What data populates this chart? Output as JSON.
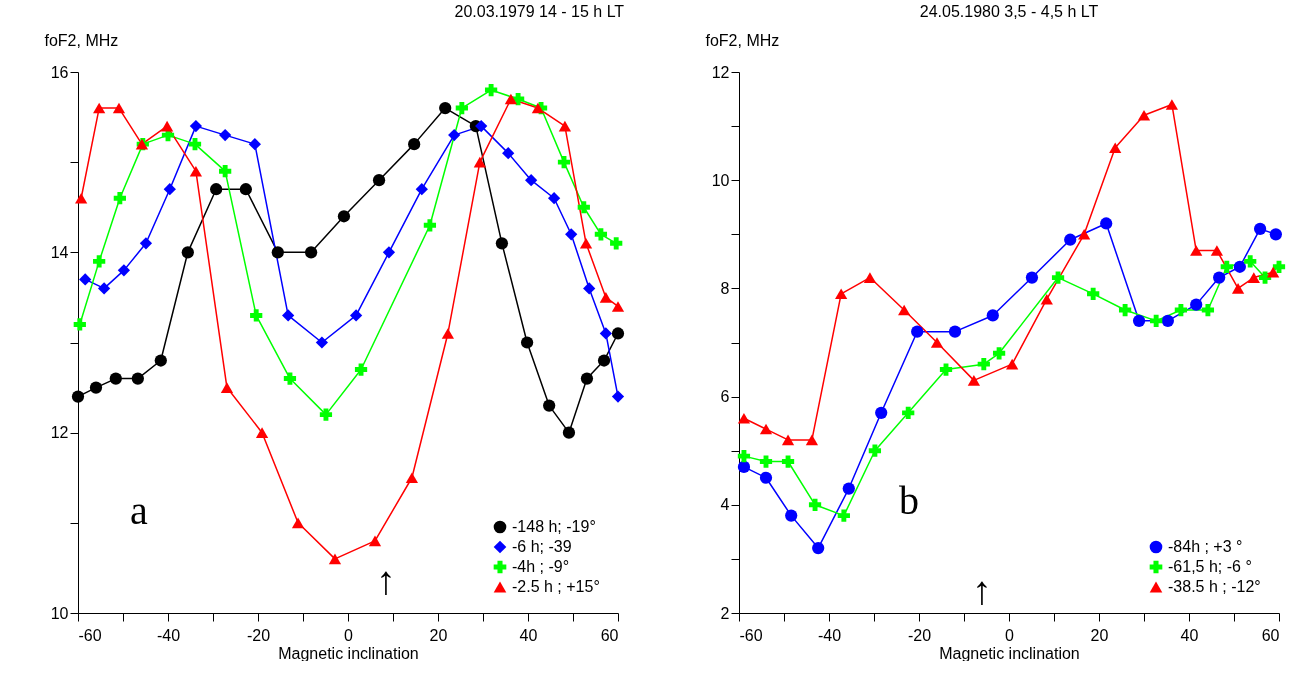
{
  "chart_data": [
    {
      "type": "line",
      "title": "20.03.1979    14 - 15 h LT",
      "xlabel": "Magnetic inclination",
      "ylabel": "foF2, MHz",
      "legend": "bottom right",
      "grid": false,
      "xlim": [
        -60,
        60
      ],
      "xticks": [
        -60,
        {
          "value": -50,
          "label": null
        },
        -40,
        {
          "value": -30,
          "label": null
        },
        -20,
        {
          "value": -10,
          "label": null
        },
        0,
        {
          "value": 10,
          "label": null
        },
        20,
        {
          "value": 30,
          "label": null
        },
        40,
        {
          "value": 50,
          "label": null
        },
        60
      ],
      "ylim": [
        10,
        16
      ],
      "yticks": [
        10,
        {
          "value": 11,
          "label": null
        },
        12,
        {
          "value": 13,
          "label": null
        },
        14,
        {
          "value": 15,
          "label": null
        },
        16
      ],
      "annotations": [
        "a",
        "↑"
      ],
      "series": [
        {
          "name": "-148 h; -19°",
          "color": "#000000",
          "marker": "circle",
          "x": [
            -60,
            -56,
            -51.6,
            -46.7,
            -41.6,
            -35.6,
            -29.3,
            -22.7,
            -15.6,
            -8.2,
            -0.9,
            6.9,
            14.7,
            21.6,
            28.4,
            34.2,
            39.8,
            44.7,
            49.1,
            53.1,
            56.9,
            60
          ],
          "values": [
            12.4,
            12.5,
            12.6,
            12.6,
            12.8,
            14.0,
            14.7,
            14.7,
            14.0,
            14.0,
            14.4,
            14.8,
            15.2,
            15.6,
            15.4,
            14.1,
            13.0,
            12.3,
            12.0,
            12.6,
            12.8,
            13.1
          ]
        },
        {
          "name": "-6 h; -39",
          "color": "#0000ff",
          "marker": "diamond",
          "x": [
            -58.4,
            -54.2,
            -49.8,
            -44.9,
            -39.6,
            -33.8,
            -27.3,
            -20.7,
            -13.3,
            -5.8,
            1.8,
            9.1,
            16.4,
            23.6,
            29.6,
            35.6,
            40.7,
            45.8,
            49.6,
            53.6,
            57.3,
            60
          ],
          "values": [
            13.7,
            13.6,
            13.8,
            14.1,
            14.7,
            15.4,
            15.3,
            15.2,
            13.3,
            13.0,
            13.3,
            14.0,
            14.7,
            15.3,
            15.4,
            15.1,
            14.8,
            14.6,
            14.2,
            13.6,
            13.1,
            12.4
          ]
        },
        {
          "name": "-4h ; -9°",
          "color": "#00ff00",
          "marker": "cross",
          "x": [
            -59.6,
            -55.3,
            -50.7,
            -45.6,
            -40,
            -34,
            -27.3,
            -20.4,
            -12.9,
            -4.9,
            2.9,
            18.2,
            25.3,
            31.8,
            37.8,
            42.9,
            48,
            52.4,
            56.2,
            59.6
          ],
          "values": [
            13.2,
            13.9,
            14.6,
            15.2,
            15.3,
            15.2,
            14.9,
            13.3,
            12.6,
            12.2,
            12.7,
            14.3,
            15.6,
            15.8,
            15.7,
            15.6,
            15.0,
            14.5,
            14.2,
            14.1
          ]
        },
        {
          "name": "-2.5 h ; +15°",
          "color": "#ff0000",
          "marker": "triangle",
          "x": [
            -59.3,
            -55.3,
            -50.9,
            -45.8,
            -40.2,
            -33.8,
            -26.9,
            -19.1,
            -11.1,
            -2.9,
            6,
            14.2,
            22.2,
            29.3,
            36.2,
            42.2,
            48.2,
            52.9,
            57.3,
            60
          ],
          "values": [
            14.6,
            15.6,
            15.6,
            15.2,
            15.4,
            14.9,
            12.5,
            12.0,
            11.0,
            10.6,
            10.8,
            11.5,
            13.1,
            15.0,
            15.7,
            15.6,
            15.4,
            14.1,
            13.5,
            13.4
          ]
        }
      ]
    },
    {
      "type": "line",
      "title": "24.05.1980    3,5 - 4,5 h LT",
      "xlabel": "Magnetic inclination",
      "ylabel": "foF2, MHz",
      "legend": "bottom right",
      "grid": false,
      "xlim": [
        -60,
        60
      ],
      "xticks": [
        -60,
        {
          "value": -50,
          "label": null
        },
        -40,
        {
          "value": -30,
          "label": null
        },
        -20,
        {
          "value": -10,
          "label": null
        },
        0,
        {
          "value": 10,
          "label": null
        },
        20,
        {
          "value": 30,
          "label": null
        },
        40,
        {
          "value": 50,
          "label": null
        },
        60
      ],
      "ylim": [
        2,
        12
      ],
      "yticks": [
        2,
        {
          "value": 3,
          "label": null
        },
        4,
        {
          "value": 5,
          "label": null
        },
        6,
        {
          "value": 7,
          "label": null
        },
        8,
        {
          "value": 9,
          "label": null
        },
        10,
        {
          "value": 11,
          "label": null
        },
        12
      ],
      "annotations": [
        "b",
        "↑"
      ],
      "series": [
        {
          "name": "-84h  ; +3 °",
          "color": "#0000ff",
          "marker": "circle",
          "x": [
            -58.9,
            -54,
            -48.4,
            -42.4,
            -35.6,
            -28.4,
            -20.4,
            -12,
            -3.6,
            5.1,
            13.6,
            21.6,
            28.9,
            35.3,
            41.6,
            46.7,
            51.3,
            55.8,
            59.3
          ],
          "values": [
            4.7,
            4.5,
            3.8,
            3.2,
            4.3,
            5.7,
            7.2,
            7.2,
            7.5,
            8.2,
            8.9,
            9.2,
            7.4,
            7.4,
            7.7,
            8.2,
            8.4,
            9.1,
            9.0
          ]
        },
        {
          "name": "-61,5 h; -6 °",
          "color": "#00ff00",
          "marker": "cross",
          "x": [
            -58.9,
            -54,
            -49.1,
            -43.1,
            -36.7,
            -29.8,
            -22.4,
            -14,
            -5.6,
            -2.2,
            10.9,
            18.7,
            25.8,
            32.7,
            38.2,
            44.2,
            48.4,
            53.6,
            56.9,
            60
          ],
          "values": [
            4.9,
            4.8,
            4.8,
            4.0,
            3.8,
            5.0,
            5.7,
            6.5,
            6.6,
            6.8,
            8.2,
            7.9,
            7.6,
            7.4,
            7.6,
            7.6,
            8.4,
            8.5,
            8.2,
            8.4
          ]
        },
        {
          "name": "-38.5 h ; -12°",
          "color": "#ff0000",
          "marker": "triangle",
          "x": [
            -58.9,
            -54,
            -49.1,
            -43.8,
            -37.3,
            -30.9,
            -23.3,
            -16,
            -7.8,
            0.7,
            8.4,
            16.7,
            23.6,
            30,
            36.2,
            41.6,
            46.2,
            50.9,
            54.4,
            58.7
          ],
          "values": [
            5.6,
            5.4,
            5.2,
            5.2,
            7.9,
            8.2,
            7.6,
            7.0,
            6.3,
            6.6,
            7.8,
            9.0,
            10.6,
            11.2,
            11.4,
            8.7,
            8.7,
            8.0,
            8.2,
            8.3
          ]
        }
      ]
    }
  ]
}
